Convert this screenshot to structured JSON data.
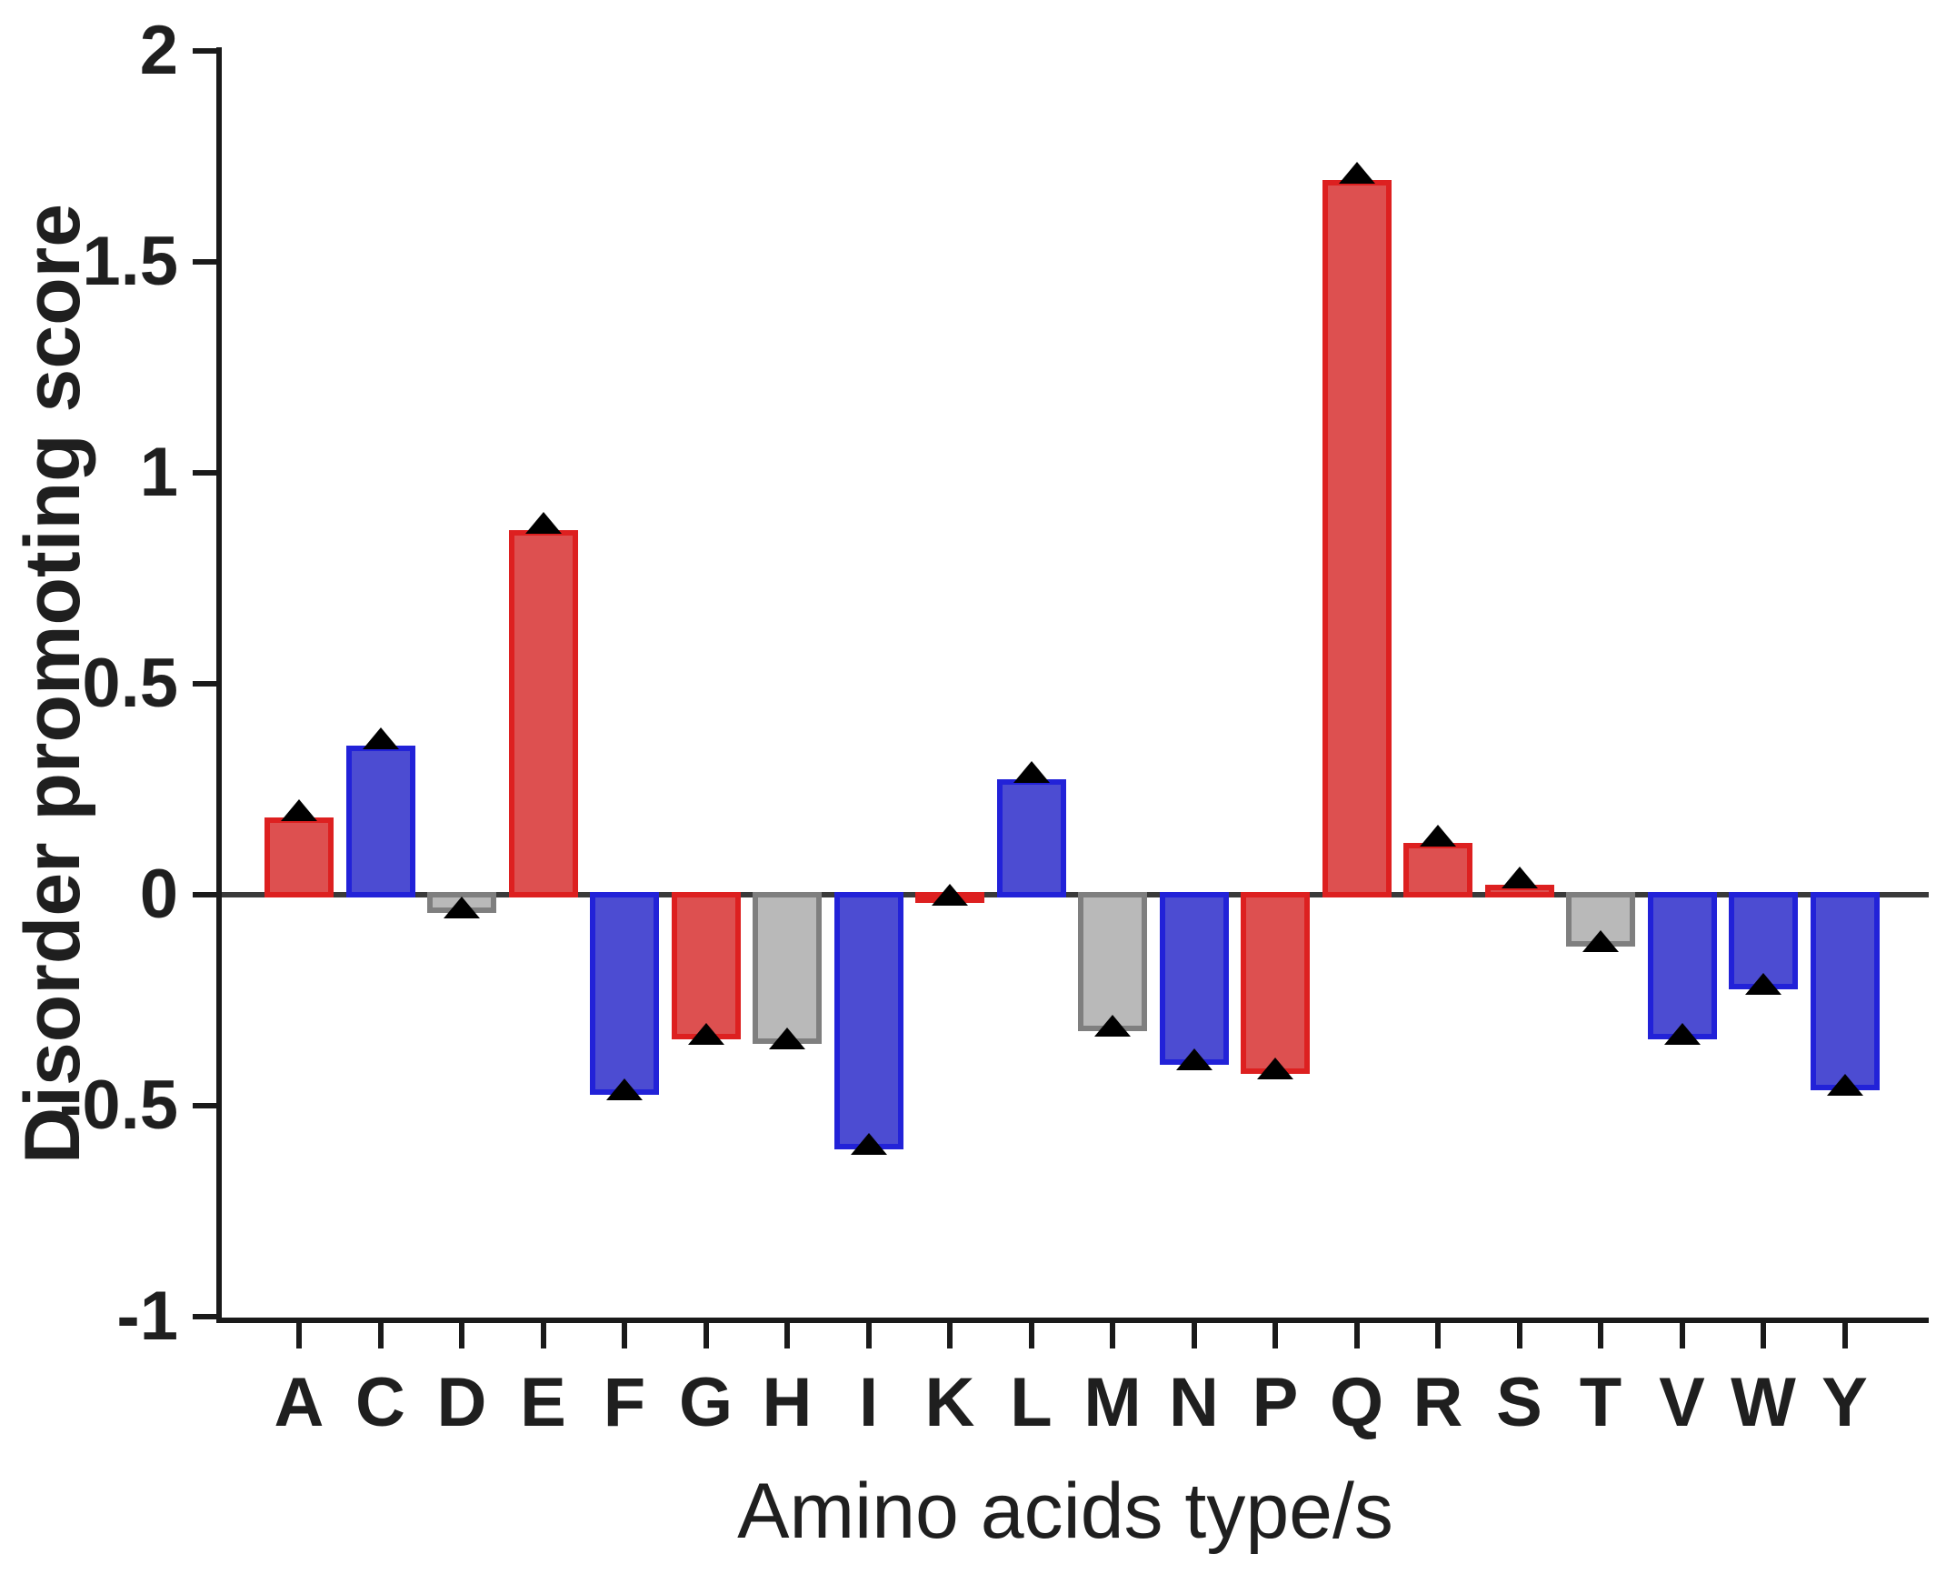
{
  "chart_data": {
    "type": "bar",
    "title": "",
    "xlabel": "Amino acids type/s",
    "ylabel": "Disorder promoting score",
    "ylim": [
      -1,
      2
    ],
    "ytick_values": [
      2,
      1.5,
      1,
      0.5,
      0,
      -0.5,
      -1
    ],
    "ytick_labels": [
      "2",
      "1.5",
      "1",
      "0.5",
      "0",
      "-0.5",
      "-1"
    ],
    "categories": [
      "A",
      "C",
      "D",
      "E",
      "F",
      "G",
      "H",
      "I",
      "K",
      "L",
      "M",
      "N",
      "P",
      "Q",
      "R",
      "S",
      "T",
      "V",
      "W",
      "Y"
    ],
    "values": [
      0.19,
      0.36,
      -0.05,
      0.87,
      -0.48,
      -0.35,
      -0.36,
      -0.61,
      -0.02,
      0.28,
      -0.33,
      -0.41,
      -0.43,
      1.7,
      0.13,
      0.03,
      -0.13,
      -0.35,
      -0.23,
      -0.47
    ],
    "bar_color_keys": [
      "red",
      "blue",
      "gray",
      "red",
      "blue",
      "red",
      "gray",
      "blue",
      "red",
      "blue",
      "gray",
      "blue",
      "red",
      "red",
      "red",
      "red",
      "gray",
      "blue",
      "blue",
      "blue"
    ],
    "palette": {
      "red": {
        "fill": "#dd5050",
        "edge": "#dd2020"
      },
      "blue": {
        "fill": "#4c4cd2",
        "edge": "#2222d8"
      },
      "gray": {
        "fill": "#b9b9b9",
        "edge": "#7f7f7f"
      }
    },
    "axis_color": "#1a1a1a",
    "zero_line_color": "#3a3a3a",
    "error_cap_color": "#000000",
    "has_error_caps": true,
    "grid": false,
    "legend": "none"
  }
}
